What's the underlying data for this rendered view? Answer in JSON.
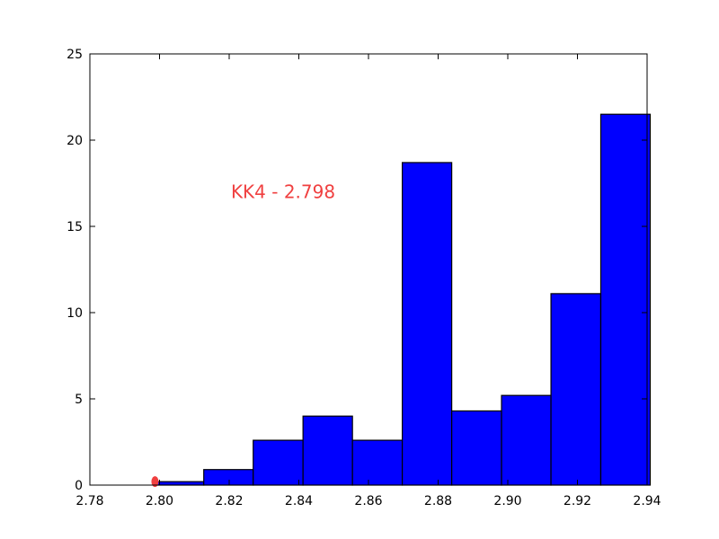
{
  "chart_data": {
    "type": "bar",
    "title": "",
    "xlabel": "",
    "ylabel": "",
    "xlim": [
      2.78,
      2.94
    ],
    "ylim": [
      0,
      25
    ],
    "grid": false,
    "x_ticks": [
      "2.78",
      "2.80",
      "2.82",
      "2.84",
      "2.86",
      "2.88",
      "2.90",
      "2.92",
      "2.94"
    ],
    "y_ticks": [
      "0",
      "5",
      "10",
      "15",
      "20",
      "25"
    ],
    "bins": [
      {
        "start": 2.7984,
        "end": 2.8127,
        "value": 0.2
      },
      {
        "start": 2.8127,
        "end": 2.8269,
        "value": 0.9
      },
      {
        "start": 2.8269,
        "end": 2.8412,
        "value": 2.6
      },
      {
        "start": 2.8412,
        "end": 2.8554,
        "value": 4.0
      },
      {
        "start": 2.8554,
        "end": 2.8697,
        "value": 2.6
      },
      {
        "start": 2.8697,
        "end": 2.8839,
        "value": 18.7
      },
      {
        "start": 2.8839,
        "end": 2.8982,
        "value": 4.3
      },
      {
        "start": 2.8982,
        "end": 2.9124,
        "value": 5.2
      },
      {
        "start": 2.9124,
        "end": 2.9267,
        "value": 11.1
      },
      {
        "start": 2.9267,
        "end": 2.9409,
        "value": 21.5
      }
    ],
    "bar_color": "#0000ff",
    "marker": {
      "x": 2.7987,
      "y": 0.2,
      "color": "#f04040"
    },
    "annotation": {
      "text": "KK4 - 2.798",
      "x": 2.8205,
      "y": 17.0,
      "color": "#f04040"
    }
  }
}
